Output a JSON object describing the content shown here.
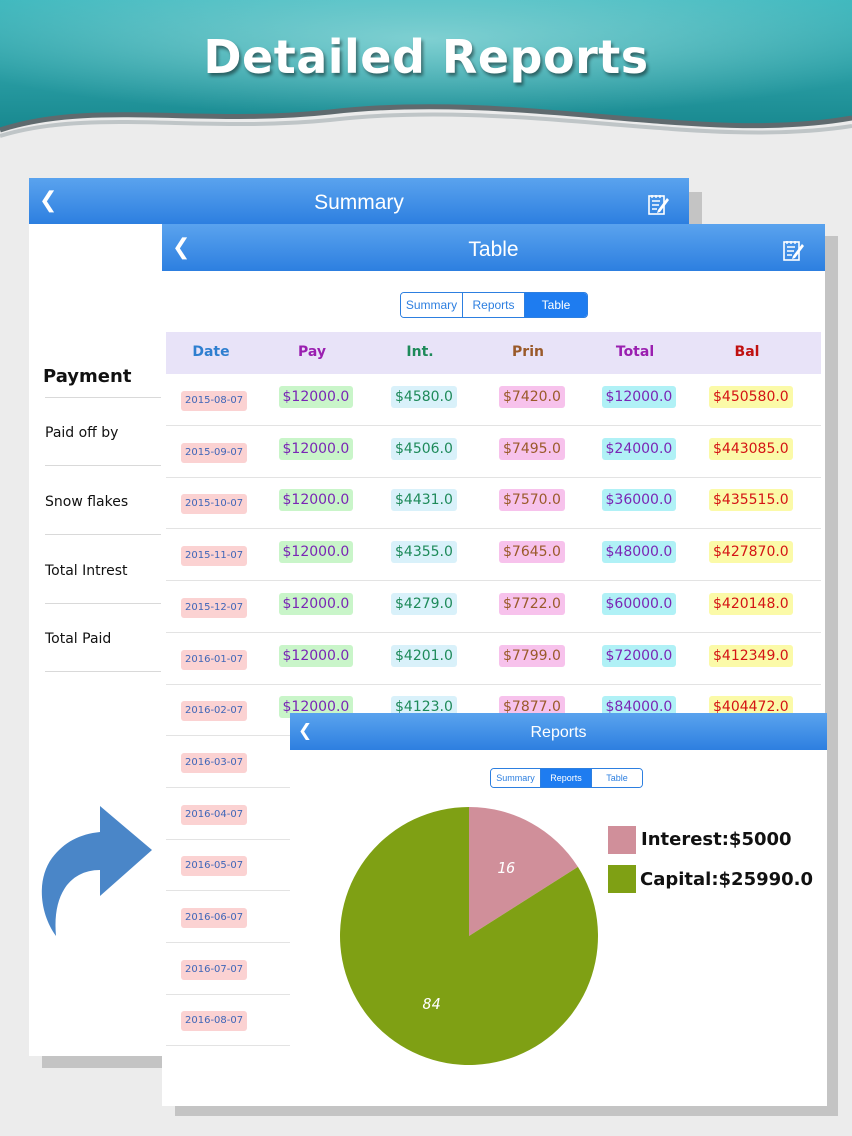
{
  "banner": {
    "title": "Detailed Reports"
  },
  "summary_panel": {
    "title": "Summary",
    "section_heading": "Payment",
    "rows": [
      "Paid off by",
      "Snow flakes",
      "Total Intrest",
      "Total Paid"
    ]
  },
  "table_panel": {
    "title": "Table",
    "segments": [
      "Summary",
      "Reports",
      "Table"
    ],
    "active_segment": "Table",
    "columns": [
      "Date",
      "Pay",
      "Int.",
      "Prin",
      "Total",
      "Bal"
    ],
    "rows": [
      {
        "date": "2015-08-07",
        "pay": "$12000.0",
        "int": "$4580.0",
        "prin": "$7420.0",
        "total": "$12000.0",
        "bal": "$450580.0"
      },
      {
        "date": "2015-09-07",
        "pay": "$12000.0",
        "int": "$4506.0",
        "prin": "$7495.0",
        "total": "$24000.0",
        "bal": "$443085.0"
      },
      {
        "date": "2015-10-07",
        "pay": "$12000.0",
        "int": "$4431.0",
        "prin": "$7570.0",
        "total": "$36000.0",
        "bal": "$435515.0"
      },
      {
        "date": "2015-11-07",
        "pay": "$12000.0",
        "int": "$4355.0",
        "prin": "$7645.0",
        "total": "$48000.0",
        "bal": "$427870.0"
      },
      {
        "date": "2015-12-07",
        "pay": "$12000.0",
        "int": "$4279.0",
        "prin": "$7722.0",
        "total": "$60000.0",
        "bal": "$420148.0"
      },
      {
        "date": "2016-01-07",
        "pay": "$12000.0",
        "int": "$4201.0",
        "prin": "$7799.0",
        "total": "$72000.0",
        "bal": "$412349.0"
      },
      {
        "date": "2016-02-07",
        "pay": "$12000.0",
        "int": "$4123.0",
        "prin": "$7877.0",
        "total": "$84000.0",
        "bal": "$404472.0"
      },
      {
        "date": "2016-03-07",
        "pay": "$",
        "int": "",
        "prin": "",
        "total": "",
        "bal": ""
      },
      {
        "date": "2016-04-07",
        "pay": "$",
        "int": "",
        "prin": "",
        "total": "",
        "bal": ""
      },
      {
        "date": "2016-05-07",
        "pay": "$",
        "int": "",
        "prin": "",
        "total": "",
        "bal": ""
      },
      {
        "date": "2016-06-07",
        "pay": "$",
        "int": "",
        "prin": "",
        "total": "",
        "bal": ""
      },
      {
        "date": "2016-07-07",
        "pay": "$",
        "int": "",
        "prin": "",
        "total": "",
        "bal": ""
      },
      {
        "date": "2016-08-07",
        "pay": "$",
        "int": "",
        "prin": "",
        "total": "",
        "bal": ""
      }
    ]
  },
  "reports_panel": {
    "title": "Reports",
    "segments": [
      "Summary",
      "Reports",
      "Table"
    ],
    "active_segment": "Reports",
    "legend": [
      {
        "label": "Interest:$5000",
        "color": "#d08f9a"
      },
      {
        "label": "Capital:$25990.0",
        "color": "#7fa014"
      }
    ],
    "slices": [
      {
        "name": "Interest",
        "value": 16,
        "label": "16",
        "color": "#d08f9a"
      },
      {
        "name": "Capital",
        "value": 84,
        "label": "84",
        "color": "#7fa014"
      }
    ]
  },
  "colors": {
    "nav_bar": "#3d8ee8",
    "banner": "#2aa7b0",
    "arrow": "#4a86c8"
  },
  "icons": [
    "back-chevron-icon",
    "edit-note-icon",
    "curved-arrow-icon"
  ]
}
